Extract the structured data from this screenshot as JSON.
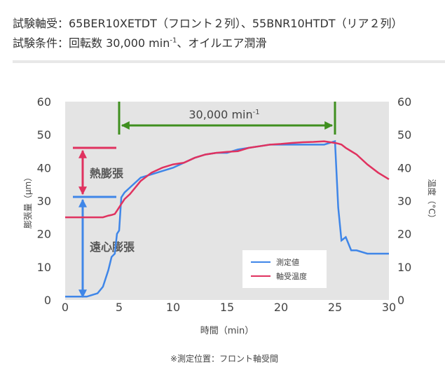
{
  "header": {
    "line1": "試験軸受：65BER10XETDT（フロント２列）、55BNR10HTDT（リア２列）",
    "line2": "試験条件：回転数 30,000 min",
    "line2_sup": "-1",
    "line2_end": "、オイルエア潤滑"
  },
  "chart_data": {
    "type": "line",
    "x": [
      0,
      1,
      2,
      3,
      3.5,
      4,
      4.3,
      4.6,
      4.8,
      5,
      5.2,
      5.5,
      6,
      7,
      8,
      9,
      10,
      11,
      12,
      13,
      14,
      15,
      16,
      17,
      18,
      19,
      20,
      21,
      22,
      23,
      24,
      25,
      25.3,
      25.6,
      26,
      26.5,
      27,
      28,
      29,
      30
    ],
    "series": [
      {
        "name": "測定値",
        "color": "#3f86e8",
        "values": [
          1,
          1,
          1,
          2,
          4,
          9,
          13,
          14,
          20,
          21,
          31,
          32.5,
          34,
          37,
          38,
          39,
          40,
          41.5,
          43,
          44,
          44.5,
          44.5,
          45.5,
          46,
          46.5,
          47,
          47,
          47,
          47,
          47,
          47,
          48,
          28,
          18,
          19,
          15,
          15,
          14,
          14,
          14
        ]
      },
      {
        "name": "軸受温度",
        "color": "#e0325f",
        "axis": "y2",
        "values": [
          25,
          25,
          25,
          25,
          25,
          25.5,
          25.7,
          26,
          27,
          28,
          29,
          30.5,
          32,
          36,
          38.5,
          40,
          41,
          41.5,
          43,
          44,
          44.5,
          44.8,
          45,
          46,
          46.5,
          47,
          47.2,
          47.5,
          47.7,
          47.8,
          48,
          47.5,
          47.3,
          47,
          46,
          45,
          44,
          41,
          38.5,
          36.5
        ]
      }
    ],
    "xlim": [
      0,
      30
    ],
    "xticks": [
      0,
      5,
      10,
      15,
      20,
      25,
      30
    ],
    "ylim": [
      0,
      60
    ],
    "yticks": [
      0,
      10,
      20,
      30,
      40,
      50,
      60
    ],
    "y2lim": [
      0,
      60
    ],
    "y2ticks": [
      0,
      10,
      20,
      30,
      40,
      50,
      60
    ],
    "xlabel": "時間（min）",
    "ylabel": "膨張量（μm）",
    "y2label": "温度（°C）",
    "grid": false,
    "legend": "lower right",
    "annotations": {
      "thermal": "熱膨張",
      "centrifugal": "遠心膨張",
      "speed": "30,000 min",
      "speed_sup": "-1"
    }
  },
  "footnote": "※測定位置：フロント軸受間"
}
